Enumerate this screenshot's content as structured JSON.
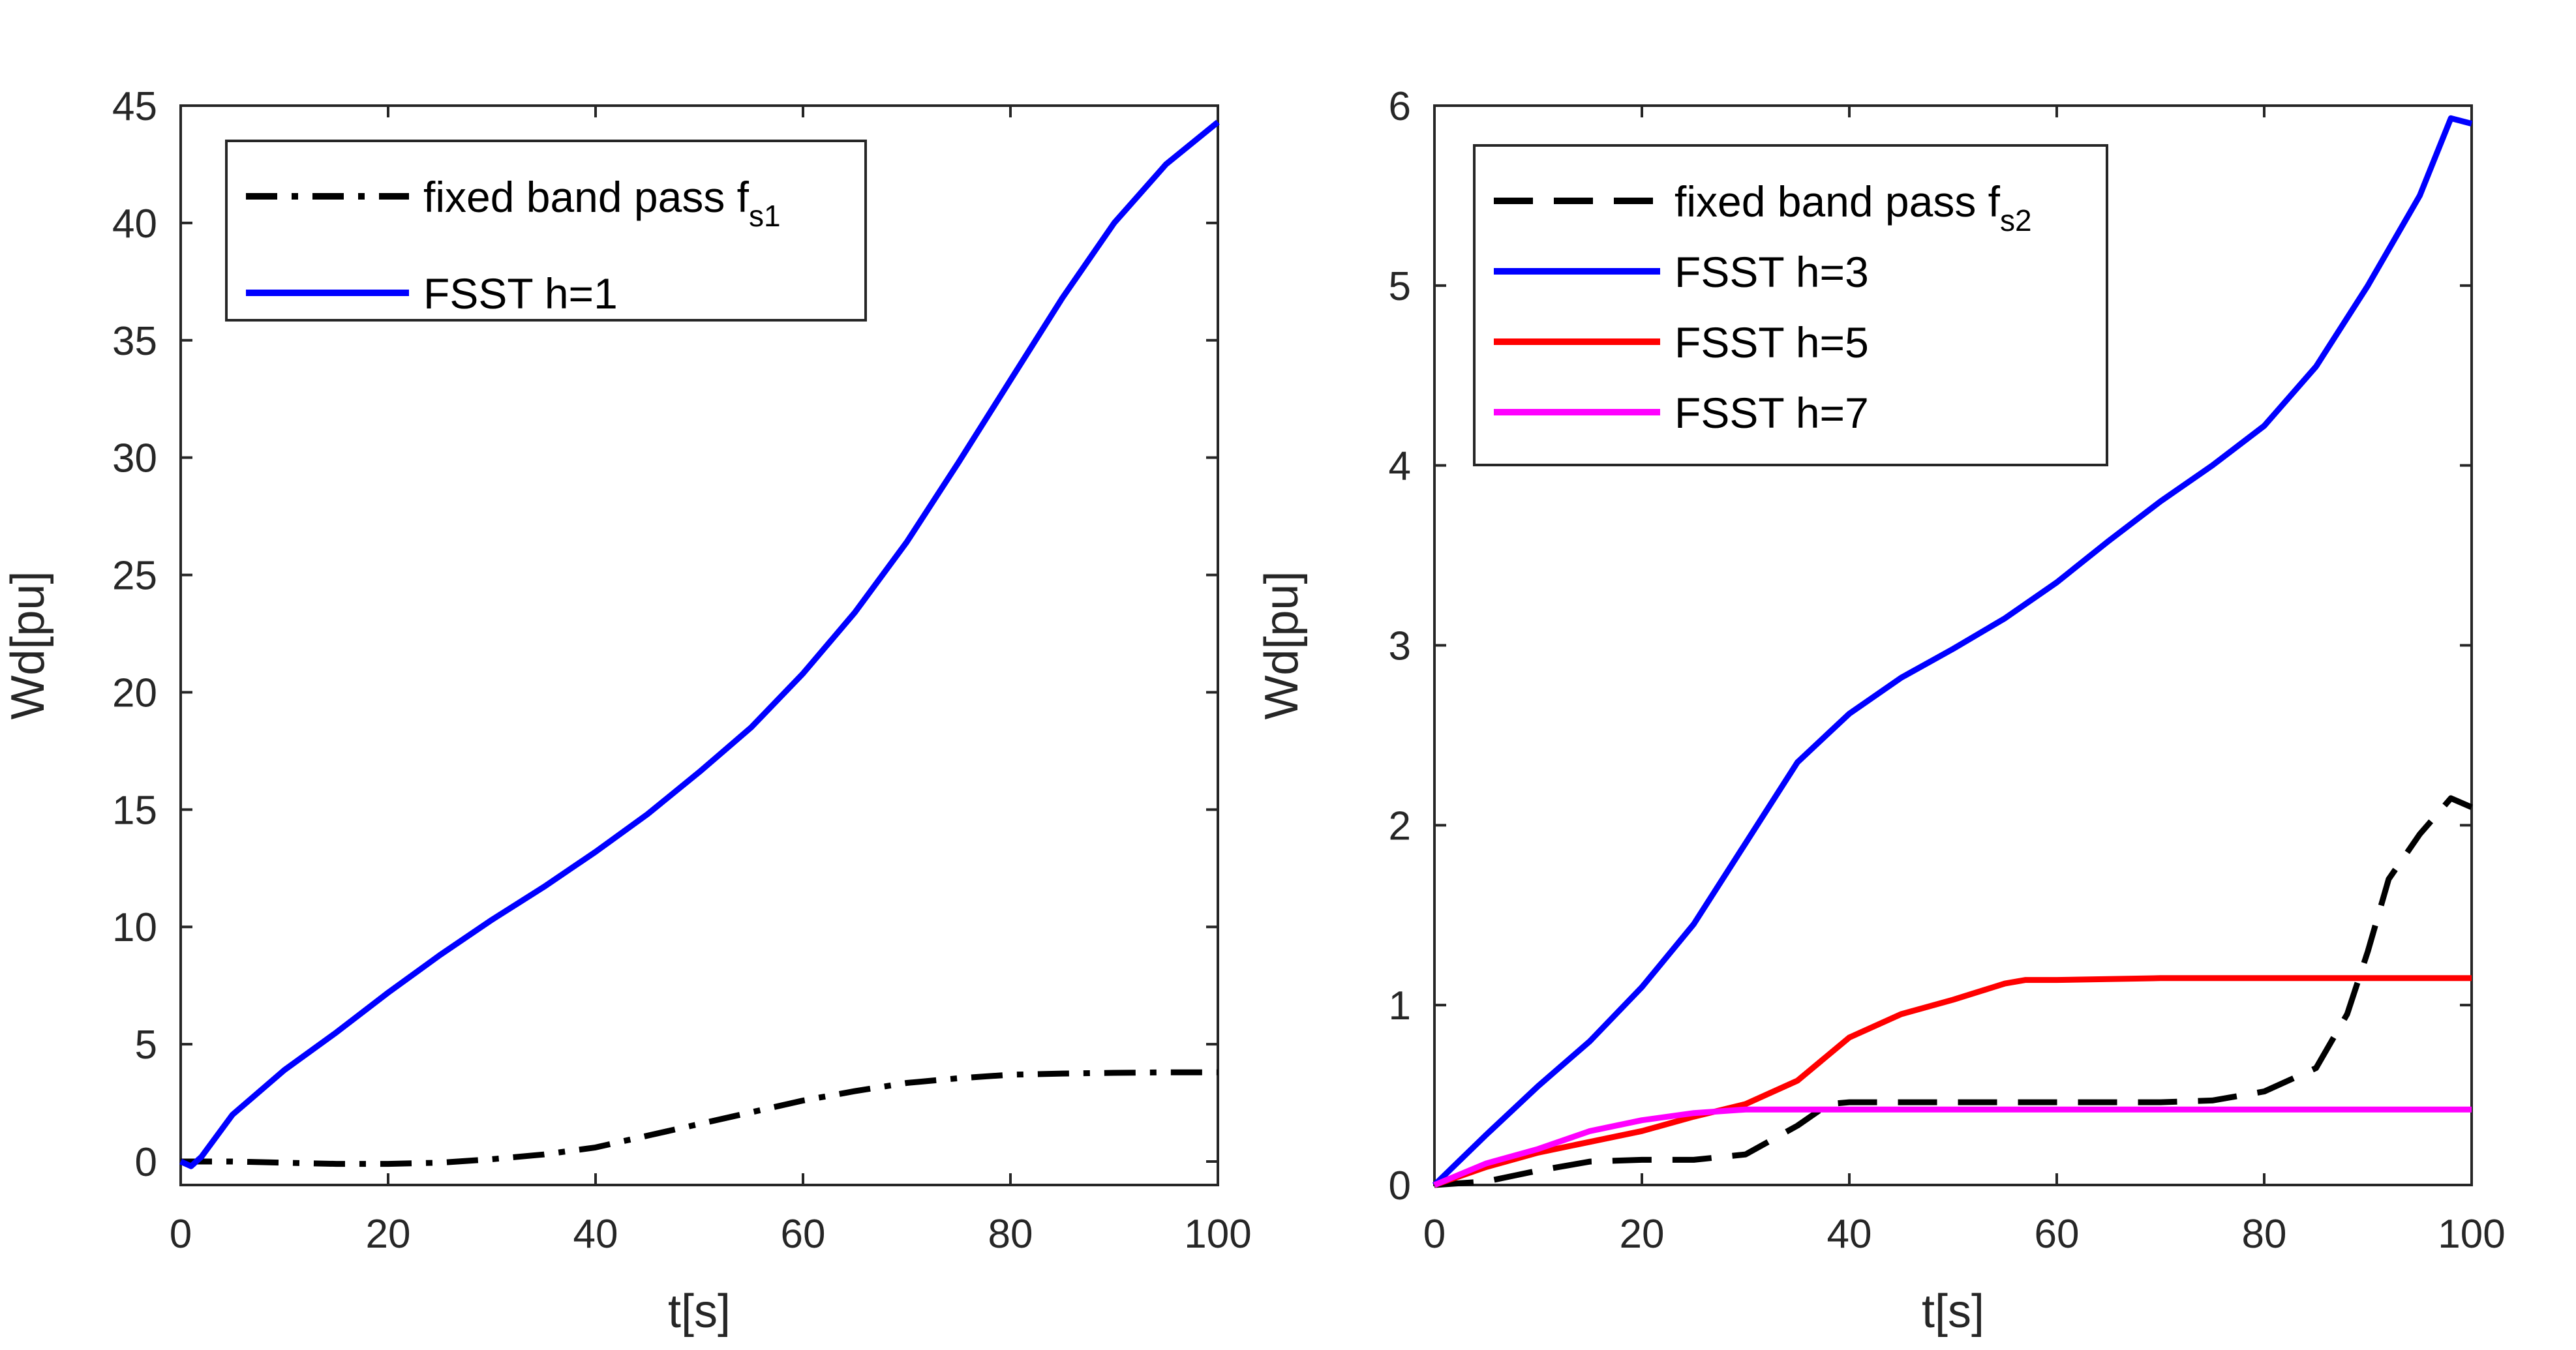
{
  "chart_data": [
    {
      "type": "line",
      "xlabel": "t[s]",
      "ylabel": "Wd[pu]",
      "xlim": [
        0,
        100
      ],
      "ylim": [
        -1,
        45
      ],
      "xticks": [
        "0",
        "20",
        "40",
        "60",
        "80",
        "100"
      ],
      "yticks": [
        "0",
        "5",
        "10",
        "15",
        "20",
        "25",
        "30",
        "35",
        "40",
        "45"
      ],
      "legend_position": "top-left",
      "series": [
        {
          "name": "fixed band pass f",
          "name_subscript": "s1",
          "color": "#000000",
          "style": "dashdot",
          "x": [
            0,
            5,
            10,
            15,
            20,
            25,
            30,
            35,
            40,
            45,
            50,
            55,
            60,
            65,
            70,
            75,
            80,
            85,
            90,
            95,
            100
          ],
          "y": [
            0,
            0,
            -0.05,
            -0.1,
            -0.1,
            -0.05,
            0.1,
            0.3,
            0.6,
            1.1,
            1.6,
            2.1,
            2.6,
            3.0,
            3.35,
            3.55,
            3.7,
            3.75,
            3.78,
            3.8,
            3.8
          ]
        },
        {
          "name": "FSST h=1",
          "color": "#0000ff",
          "style": "solid",
          "x": [
            0,
            1,
            2,
            5,
            10,
            15,
            20,
            25,
            30,
            35,
            40,
            45,
            50,
            55,
            60,
            65,
            70,
            75,
            80,
            85,
            90,
            95,
            100
          ],
          "y": [
            0,
            -0.2,
            0.2,
            2.0,
            3.9,
            5.5,
            7.2,
            8.8,
            10.3,
            11.7,
            13.2,
            14.8,
            16.6,
            18.5,
            20.8,
            23.4,
            26.4,
            29.8,
            33.3,
            36.8,
            40.0,
            42.5,
            44.3
          ]
        }
      ]
    },
    {
      "type": "line",
      "xlabel": "t[s]",
      "ylabel": "Wd[pu]",
      "xlim": [
        0,
        100
      ],
      "ylim": [
        0,
        6
      ],
      "xticks": [
        "0",
        "20",
        "40",
        "60",
        "80",
        "100"
      ],
      "yticks": [
        "0",
        "1",
        "2",
        "3",
        "4",
        "5",
        "6"
      ],
      "legend_position": "top-left",
      "series": [
        {
          "name": "fixed band pass f",
          "name_subscript": "s2",
          "color": "#000000",
          "style": "dashed",
          "x": [
            0,
            5,
            10,
            15,
            20,
            25,
            30,
            35,
            38,
            40,
            45,
            50,
            55,
            60,
            65,
            70,
            75,
            80,
            85,
            88,
            90,
            92,
            95,
            98,
            100
          ],
          "y": [
            0,
            0.02,
            0.08,
            0.13,
            0.14,
            0.14,
            0.17,
            0.33,
            0.45,
            0.46,
            0.46,
            0.46,
            0.46,
            0.46,
            0.46,
            0.46,
            0.47,
            0.52,
            0.65,
            0.95,
            1.3,
            1.7,
            1.95,
            2.15,
            2.1
          ]
        },
        {
          "name": "FSST h=3",
          "color": "#0000ff",
          "style": "solid",
          "x": [
            0,
            5,
            10,
            15,
            20,
            25,
            30,
            35,
            40,
            45,
            50,
            55,
            60,
            65,
            70,
            75,
            80,
            85,
            90,
            95,
            98,
            100
          ],
          "y": [
            0,
            0.28,
            0.55,
            0.8,
            1.1,
            1.45,
            1.9,
            2.35,
            2.62,
            2.82,
            2.98,
            3.15,
            3.35,
            3.58,
            3.8,
            4.0,
            4.22,
            4.55,
            5.0,
            5.5,
            5.93,
            5.9
          ]
        },
        {
          "name": "FSST h=5",
          "color": "#ff0000",
          "style": "solid",
          "x": [
            0,
            5,
            10,
            15,
            20,
            25,
            30,
            35,
            40,
            45,
            50,
            55,
            57,
            60,
            70,
            80,
            90,
            100
          ],
          "y": [
            0,
            0.1,
            0.18,
            0.24,
            0.3,
            0.38,
            0.45,
            0.58,
            0.82,
            0.95,
            1.03,
            1.12,
            1.14,
            1.14,
            1.15,
            1.15,
            1.15,
            1.15
          ]
        },
        {
          "name": "FSST h=7",
          "color": "#ff00ff",
          "style": "solid",
          "x": [
            0,
            5,
            10,
            15,
            20,
            25,
            30,
            35,
            40,
            50,
            60,
            70,
            80,
            90,
            100
          ],
          "y": [
            0,
            0.12,
            0.2,
            0.3,
            0.36,
            0.4,
            0.42,
            0.42,
            0.42,
            0.42,
            0.42,
            0.42,
            0.42,
            0.42,
            0.42
          ]
        }
      ]
    }
  ]
}
